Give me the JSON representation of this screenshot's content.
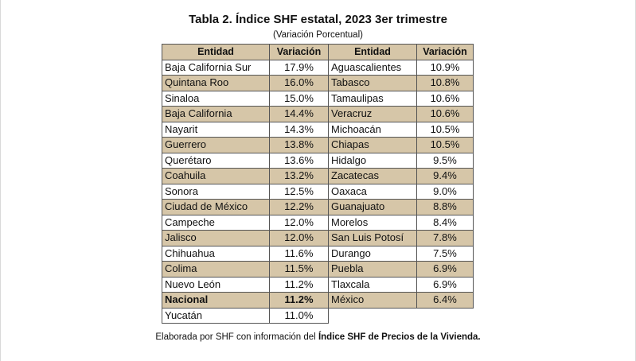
{
  "title": "Tabla 2. Índice SHF estatal, 2023 3er trimestre",
  "subtitle": "(Variación Porcentual)",
  "headers": [
    "Entidad",
    "Variación",
    "Entidad",
    "Variación"
  ],
  "left": [
    {
      "entity": "Baja California Sur",
      "value": "17.9%"
    },
    {
      "entity": "Quintana Roo",
      "value": "16.0%"
    },
    {
      "entity": "Sinaloa",
      "value": "15.0%"
    },
    {
      "entity": "Baja California",
      "value": "14.4%"
    },
    {
      "entity": "Nayarit",
      "value": "14.3%"
    },
    {
      "entity": "Guerrero",
      "value": "13.8%"
    },
    {
      "entity": "Querétaro",
      "value": "13.6%"
    },
    {
      "entity": "Coahuila",
      "value": "13.2%"
    },
    {
      "entity": "Sonora",
      "value": "12.5%"
    },
    {
      "entity": "Ciudad de México",
      "value": "12.2%"
    },
    {
      "entity": "Campeche",
      "value": "12.0%"
    },
    {
      "entity": "Jalisco",
      "value": "12.0%"
    },
    {
      "entity": "Chihuahua",
      "value": "11.6%"
    },
    {
      "entity": "Colima",
      "value": "11.5%"
    },
    {
      "entity": "Nuevo León",
      "value": "11.2%"
    },
    {
      "entity": "Nacional",
      "value": "11.2%"
    },
    {
      "entity": "Yucatán",
      "value": "11.0%"
    }
  ],
  "right": [
    {
      "entity": "Aguascalientes",
      "value": "10.9%"
    },
    {
      "entity": "Tabasco",
      "value": "10.8%"
    },
    {
      "entity": "Tamaulipas",
      "value": "10.6%"
    },
    {
      "entity": "Veracruz",
      "value": "10.6%"
    },
    {
      "entity": "Michoacán",
      "value": "10.5%"
    },
    {
      "entity": "Chiapas",
      "value": "10.5%"
    },
    {
      "entity": "Hidalgo",
      "value": "9.5%"
    },
    {
      "entity": "Zacatecas",
      "value": "9.4%"
    },
    {
      "entity": "Oaxaca",
      "value": "9.0%"
    },
    {
      "entity": "Guanajuato",
      "value": "8.8%"
    },
    {
      "entity": "Morelos",
      "value": "8.4%"
    },
    {
      "entity": "San Luis Potosí",
      "value": "7.8%"
    },
    {
      "entity": "Durango",
      "value": "7.5%"
    },
    {
      "entity": "Puebla",
      "value": "6.9%"
    },
    {
      "entity": "Tlaxcala",
      "value": "6.9%"
    },
    {
      "entity": "México",
      "value": "6.4%"
    }
  ],
  "source": {
    "prefix": "Elaborada por SHF con información del ",
    "bold": "Índice SHF de Precios de la Vivienda."
  },
  "colors": {
    "shade": "#d6c6a8",
    "border": "#555555"
  }
}
